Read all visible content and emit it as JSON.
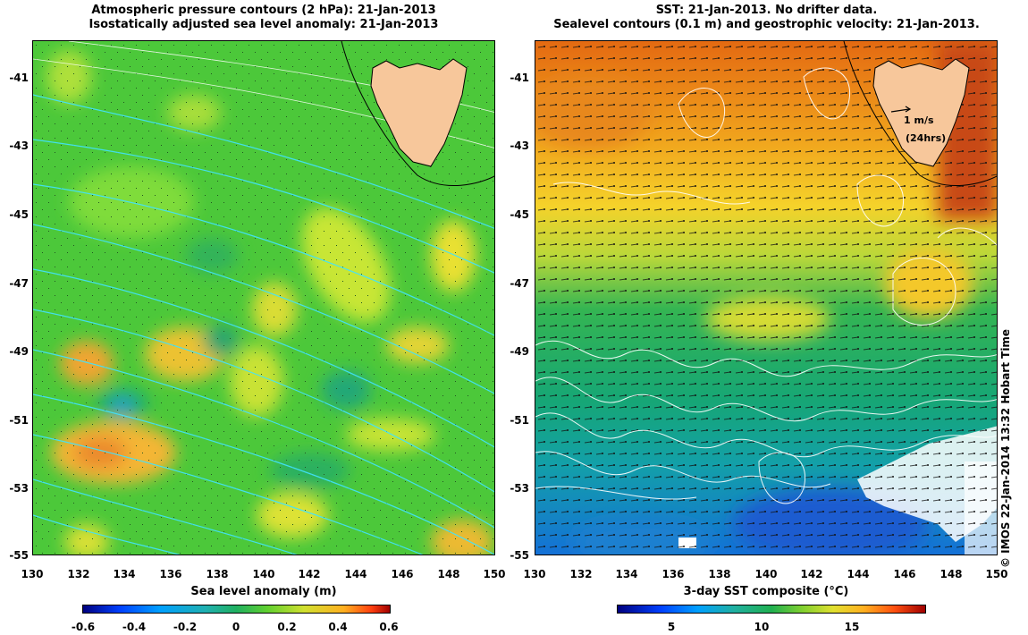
{
  "left_panel": {
    "title_line1": "Atmospheric pressure contours (2 hPa): 21-Jan-2013",
    "title_line2": "Isostatically adjusted sea level anomaly: 21-Jan-2013",
    "colorbar_label": "Sea level anomaly (m)",
    "colorbar_ticks": [
      "-0.6",
      "-0.4",
      "-0.2",
      "0",
      "0.2",
      "0.4",
      "0.6"
    ],
    "colorbar_range": [
      -0.6,
      0.6
    ]
  },
  "right_panel": {
    "title_line1": "SST: 21-Jan-2013. No drifter data.",
    "title_line2": "Sealevel contours (0.1 m) and geostrophic velocity: 21-Jan-2013.",
    "colorbar_label": "3-day SST composite (°C)",
    "colorbar_ticks": [
      "5",
      "10",
      "15"
    ],
    "colorbar_values": [
      5,
      10,
      15
    ],
    "colorbar_range": [
      2,
      19
    ],
    "velocity_scale_label": "1 m/s",
    "velocity_scale_sublabel": "(24hrs)"
  },
  "axes": {
    "lat_ticks": [
      "-41",
      "-43",
      "-45",
      "-47",
      "-49",
      "-51",
      "-53",
      "-55"
    ],
    "lon_ticks": [
      "130",
      "132",
      "134",
      "136",
      "138",
      "140",
      "142",
      "144",
      "146",
      "148",
      "150"
    ],
    "lat_range": [
      -55,
      -40
    ],
    "lon_range": [
      130,
      150
    ]
  },
  "copyright": "© IMOS 22-Jan-2014 13:32 Hobart Time",
  "colors": {
    "land": "#f7c79b",
    "pressure_contour": "#41e3ff",
    "sealevel_contour": "#ffffff"
  }
}
